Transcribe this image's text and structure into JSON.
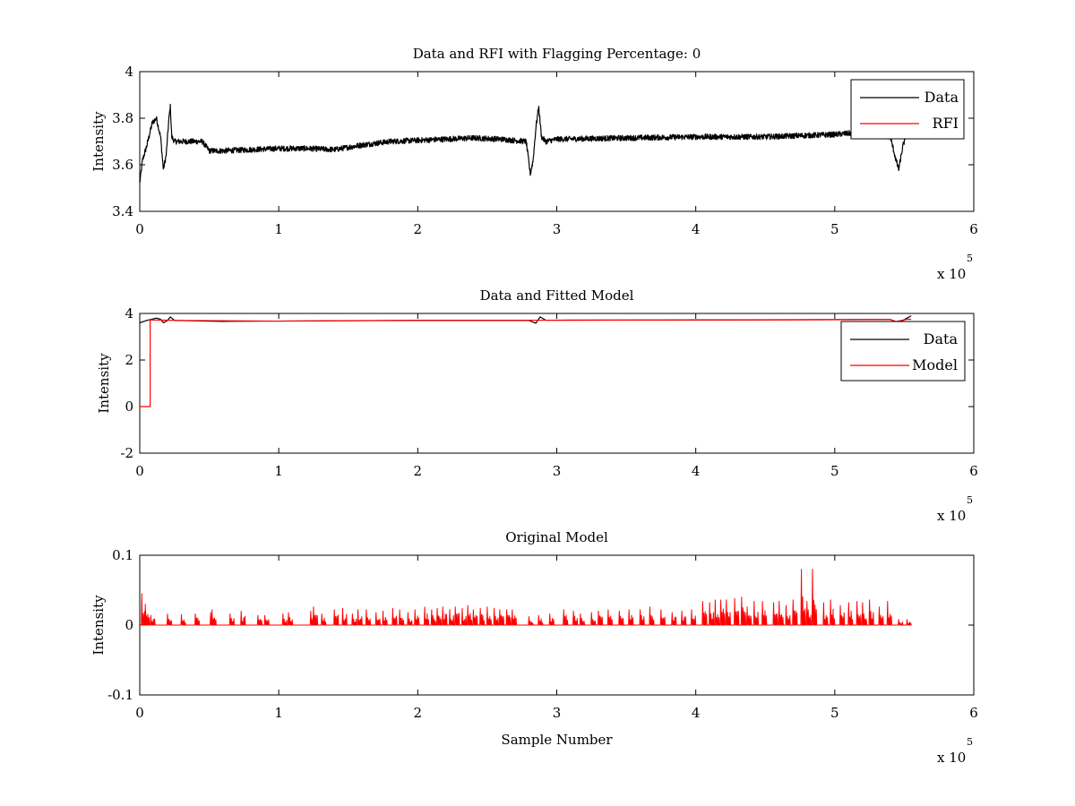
{
  "chart_data": [
    {
      "type": "line",
      "title": "Data and RFI with Flagging Percentage: 0",
      "xlabel": "",
      "ylabel": "Intensity",
      "xlim": [
        0,
        600000
      ],
      "ylim": [
        3.4,
        4
      ],
      "x_ticks": [
        "0",
        "1",
        "2",
        "3",
        "4",
        "5",
        "6"
      ],
      "y_ticks": [
        "3.4",
        "3.6",
        "3.8",
        "4"
      ],
      "x_tick_values": [
        0,
        100000,
        200000,
        300000,
        400000,
        500000,
        600000
      ],
      "y_tick_values": [
        3.4,
        3.6,
        3.8,
        4
      ],
      "exponent_label": {
        "base": "x 10",
        "power": "5"
      },
      "legend": {
        "placement": "top-right",
        "entries": [
          {
            "label": "Data",
            "color": "#000000"
          },
          {
            "label": "RFI",
            "color": "#ff0000"
          }
        ]
      },
      "series": [
        {
          "name": "Data",
          "color": "#000000",
          "noise": 0.012,
          "x": [
            0,
            2000,
            5000,
            9000,
            12000,
            15000,
            17000,
            19000,
            21000,
            22000,
            23000,
            25000,
            28000,
            35000,
            45000,
            50000,
            60000,
            80000,
            100000,
            120000,
            140000,
            160000,
            180000,
            200000,
            220000,
            240000,
            260000,
            278000,
            281000,
            283000,
            285000,
            287000,
            289000,
            292000,
            300000,
            350000,
            400000,
            450000,
            500000,
            520000,
            540000,
            544000,
            546000,
            549000,
            552000,
            555000
          ],
          "y": [
            3.52,
            3.62,
            3.68,
            3.78,
            3.8,
            3.72,
            3.58,
            3.64,
            3.8,
            3.85,
            3.72,
            3.7,
            3.7,
            3.7,
            3.7,
            3.66,
            3.66,
            3.665,
            3.67,
            3.67,
            3.665,
            3.685,
            3.7,
            3.705,
            3.71,
            3.715,
            3.71,
            3.7,
            3.56,
            3.62,
            3.76,
            3.85,
            3.72,
            3.7,
            3.71,
            3.715,
            3.72,
            3.72,
            3.73,
            3.74,
            3.72,
            3.62,
            3.58,
            3.68,
            3.74,
            3.75
          ]
        },
        {
          "name": "RFI",
          "color": "#ff0000",
          "x": [],
          "y": []
        }
      ]
    },
    {
      "type": "line",
      "title": "Data and Fitted Model",
      "xlabel": "",
      "ylabel": "Intensity",
      "xlim": [
        0,
        600000
      ],
      "ylim": [
        -2,
        4
      ],
      "x_ticks": [
        "0",
        "1",
        "2",
        "3",
        "4",
        "5",
        "6"
      ],
      "y_ticks": [
        "-2",
        "0",
        "2",
        "4"
      ],
      "x_tick_values": [
        0,
        100000,
        200000,
        300000,
        400000,
        500000,
        600000
      ],
      "y_tick_values": [
        -2,
        0,
        2,
        4
      ],
      "exponent_label": {
        "base": "x 10",
        "power": "5"
      },
      "legend": {
        "placement": "right",
        "entries": [
          {
            "label": "Data",
            "color": "#000000"
          },
          {
            "label": "Model",
            "color": "#ff0000"
          }
        ]
      },
      "series": [
        {
          "name": "Data",
          "color": "#000000",
          "x": [
            0,
            5000,
            12000,
            15000,
            17000,
            20000,
            22000,
            25000,
            60000,
            200000,
            280000,
            285000,
            288000,
            292000,
            400000,
            540000,
            546000,
            552000,
            555000
          ],
          "y": [
            3.6,
            3.7,
            3.8,
            3.75,
            3.6,
            3.7,
            3.85,
            3.7,
            3.66,
            3.7,
            3.7,
            3.58,
            3.85,
            3.71,
            3.72,
            3.74,
            3.6,
            3.8,
            3.9
          ]
        },
        {
          "name": "Model",
          "color": "#ff0000",
          "x": [
            0,
            7500,
            7500,
            8000,
            30000,
            100000,
            200000,
            300000,
            400000,
            500000,
            540000,
            544000,
            548000,
            552000,
            555000
          ],
          "y": [
            0,
            0,
            3.72,
            3.72,
            3.7,
            3.67,
            3.71,
            3.71,
            3.72,
            3.73,
            3.74,
            3.65,
            3.7,
            3.75,
            3.75
          ]
        }
      ]
    },
    {
      "type": "line",
      "title": "Original Model",
      "xlabel": "Sample Number",
      "ylabel": "Intensity",
      "xlim": [
        0,
        600000
      ],
      "ylim": [
        -0.1,
        0.1
      ],
      "x_ticks": [
        "0",
        "1",
        "2",
        "3",
        "4",
        "5",
        "6"
      ],
      "y_ticks": [
        "-0.1",
        "0",
        "0.1"
      ],
      "x_tick_values": [
        0,
        100000,
        200000,
        300000,
        400000,
        500000,
        600000
      ],
      "y_tick_values": [
        -0.1,
        0,
        0.1
      ],
      "exponent_label": {
        "base": "x 10",
        "power": "5"
      },
      "series": [
        {
          "name": "",
          "color": "#ff0000",
          "x_end": 555000,
          "spikes_x": [
            1500,
            4000,
            8000,
            20000,
            30000,
            40000,
            51000,
            52000,
            65000,
            73000,
            85000,
            90000,
            103000,
            107000,
            123000,
            125000,
            131000,
            140000,
            146000,
            153000,
            157000,
            163000,
            170000,
            175000,
            182000,
            187000,
            193000,
            198000,
            205000,
            210000,
            214000,
            218000,
            223000,
            227000,
            232000,
            236000,
            240000,
            245000,
            250000,
            255000,
            259000,
            264000,
            268000,
            280000,
            287000,
            295000,
            305000,
            312000,
            317000,
            325000,
            330000,
            337000,
            345000,
            352000,
            360000,
            367000,
            375000,
            383000,
            390000,
            397000,
            405000,
            410000,
            414000,
            418000,
            422000,
            428000,
            433000,
            437000,
            442000,
            448000,
            456000,
            460000,
            465000,
            470000,
            476000,
            480000,
            484000,
            492000,
            497000,
            504000,
            510000,
            516000,
            520000,
            525000,
            532000,
            538000,
            546000,
            552000
          ],
          "spikes_y": [
            0.045,
            0.03,
            0.014,
            0.016,
            0.015,
            0.016,
            0.018,
            0.022,
            0.016,
            0.02,
            0.014,
            0.014,
            0.016,
            0.018,
            0.02,
            0.026,
            0.016,
            0.022,
            0.024,
            0.016,
            0.022,
            0.022,
            0.018,
            0.02,
            0.024,
            0.022,
            0.018,
            0.022,
            0.026,
            0.022,
            0.024,
            0.026,
            0.022,
            0.026,
            0.024,
            0.028,
            0.022,
            0.024,
            0.026,
            0.024,
            0.022,
            0.022,
            0.022,
            0.012,
            0.014,
            0.016,
            0.022,
            0.02,
            0.016,
            0.018,
            0.02,
            0.022,
            0.02,
            0.022,
            0.022,
            0.026,
            0.022,
            0.018,
            0.02,
            0.022,
            0.034,
            0.032,
            0.036,
            0.036,
            0.036,
            0.038,
            0.04,
            0.026,
            0.034,
            0.034,
            0.032,
            0.034,
            0.028,
            0.036,
            0.08,
            0.034,
            0.08,
            0.032,
            0.036,
            0.028,
            0.032,
            0.034,
            0.032,
            0.036,
            0.026,
            0.034,
            0.008,
            0.008
          ]
        }
      ]
    }
  ]
}
